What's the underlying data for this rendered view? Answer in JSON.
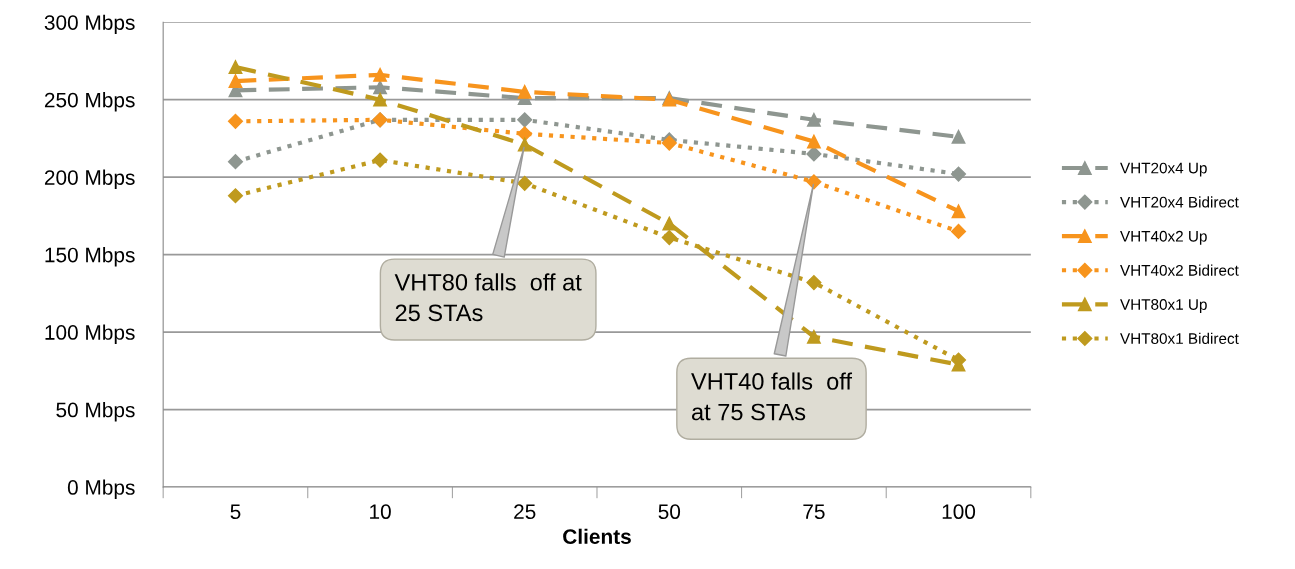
{
  "chart_data": {
    "type": "line",
    "xlabel": "Clients",
    "categories": [
      "5",
      "10",
      "25",
      "50",
      "75",
      "100"
    ],
    "ylim": [
      0,
      300
    ],
    "yticks": [
      {
        "value": 0,
        "label": "0 Mbps"
      },
      {
        "value": 50,
        "label": "50 Mbps"
      },
      {
        "value": 100,
        "label": "100 Mbps"
      },
      {
        "value": 150,
        "label": "150 Mbps"
      },
      {
        "value": 200,
        "label": "200 Mbps"
      },
      {
        "value": 250,
        "label": "250 Mbps"
      },
      {
        "value": 300,
        "label": "300 Mbps"
      }
    ],
    "grid": "y",
    "legend": "right",
    "series": [
      {
        "name": "VHT20x4 Up",
        "color": "#8e9690",
        "marker": "triangle",
        "line_style": "dashed",
        "values": [
          256,
          258,
          251,
          251,
          237,
          226
        ]
      },
      {
        "name": "VHT20x4 Bidirect",
        "color": "#8e9690",
        "marker": "diamond",
        "line_style": "dotted",
        "values": [
          210,
          237,
          237,
          224,
          215,
          202
        ]
      },
      {
        "name": "VHT40x2 Up",
        "color": "#f7941d",
        "marker": "triangle",
        "line_style": "dashed",
        "values": [
          262,
          266,
          255,
          250,
          223,
          178
        ]
      },
      {
        "name": "VHT40x2 Bidirect",
        "color": "#f7941d",
        "marker": "diamond",
        "line_style": "dotted",
        "values": [
          236,
          237,
          228,
          222,
          197,
          165
        ]
      },
      {
        "name": "VHT80x1 Up",
        "color": "#bf9a1e",
        "marker": "triangle",
        "line_style": "dashed",
        "values": [
          271,
          250,
          221,
          170,
          97,
          79
        ]
      },
      {
        "name": "VHT80x1 Bidirect",
        "color": "#bf9a1e",
        "marker": "diamond",
        "line_style": "dotted",
        "values": [
          188,
          211,
          196,
          161,
          132,
          82
        ]
      }
    ],
    "annotations": [
      {
        "text": "VHT80 falls  off at\n25 STAs",
        "x": "25",
        "y": 221
      },
      {
        "text": "VHT40 falls  off\nat 75 STAs",
        "x": "75",
        "y": 197
      }
    ]
  }
}
